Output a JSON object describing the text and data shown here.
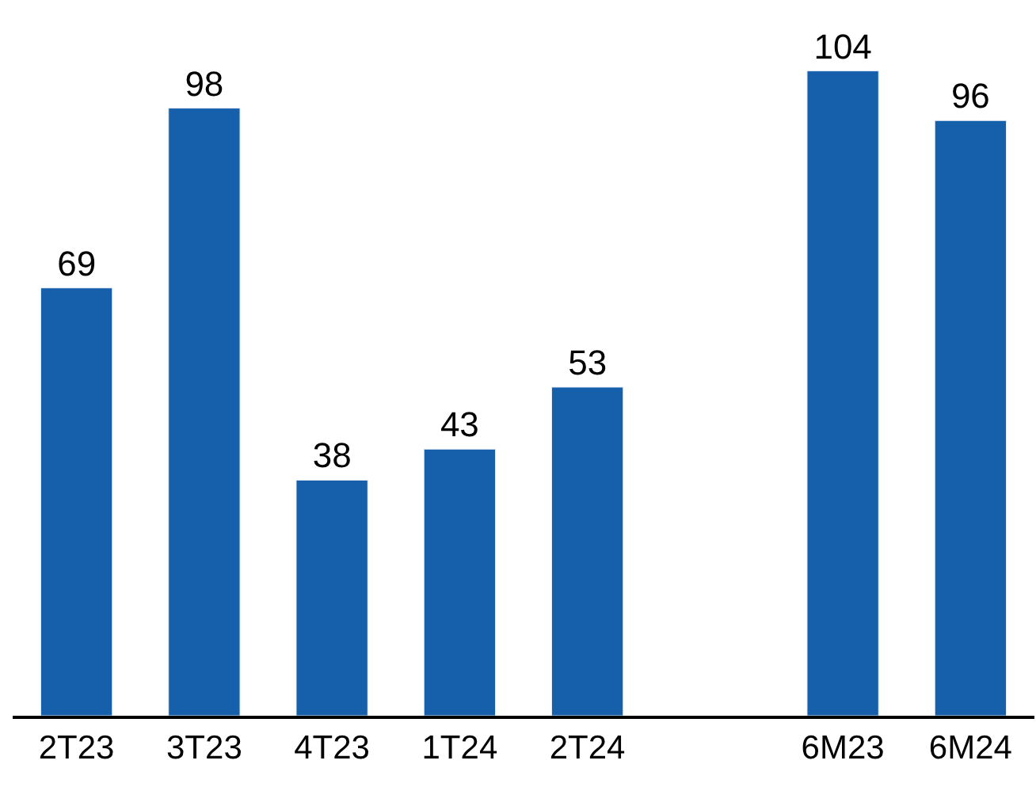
{
  "chart_data": {
    "type": "bar",
    "categories": [
      "2T23",
      "3T23",
      "4T23",
      "1T24",
      "2T24",
      null,
      "6M23",
      "6M24"
    ],
    "values": [
      69,
      98,
      38,
      43,
      53,
      null,
      104,
      96
    ],
    "color": "#1660ab",
    "data_labels": true
  }
}
